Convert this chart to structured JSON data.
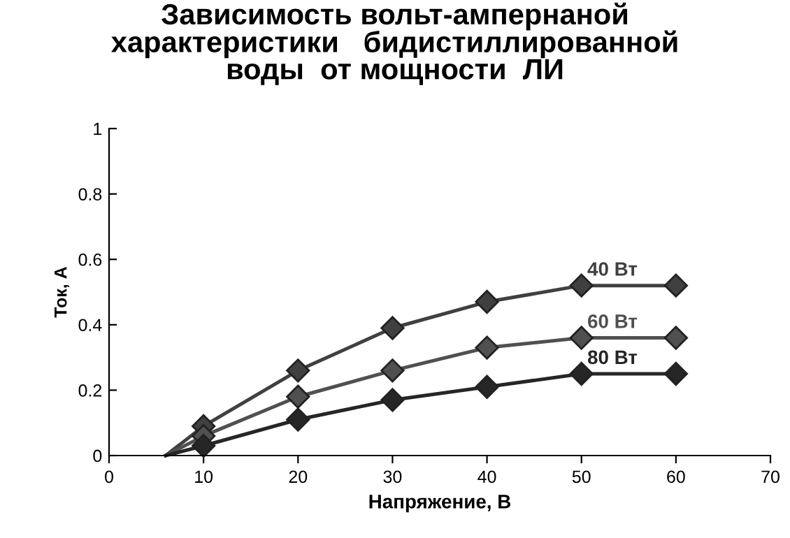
{
  "chart_data": {
    "type": "line",
    "title": "Зависимость вольт-ампернаной\nхарактеристики   бидистиллированной\nводы  от мощности  ЛИ",
    "xlabel": "Напряжение, В",
    "ylabel": "Ток, А",
    "series": [
      {
        "name": "40 Вт",
        "color": "#404040",
        "x": [
          6,
          10,
          20,
          30,
          40,
          50,
          60
        ],
        "values": [
          0,
          0.09,
          0.26,
          0.39,
          0.47,
          0.52,
          0.52
        ]
      },
      {
        "name": "60 Вт",
        "color": "#505050",
        "x": [
          6,
          10,
          20,
          30,
          40,
          50,
          60
        ],
        "values": [
          0,
          0.06,
          0.18,
          0.26,
          0.33,
          0.36,
          0.36
        ]
      },
      {
        "name": "80 Вт",
        "color": "#262626",
        "x": [
          6,
          10,
          20,
          30,
          40,
          50,
          60
        ],
        "values": [
          0,
          0.03,
          0.11,
          0.17,
          0.21,
          0.25,
          0.25
        ]
      }
    ],
    "xlim": [
      0,
      70
    ],
    "xticks": [
      0,
      10,
      20,
      30,
      40,
      50,
      60,
      70
    ],
    "ylim": [
      0,
      1
    ],
    "yticks": [
      0,
      0.2,
      0.4,
      0.6,
      0.8,
      1
    ],
    "grid": false,
    "legend": false,
    "marker": "diamond",
    "line_style": "solid"
  }
}
